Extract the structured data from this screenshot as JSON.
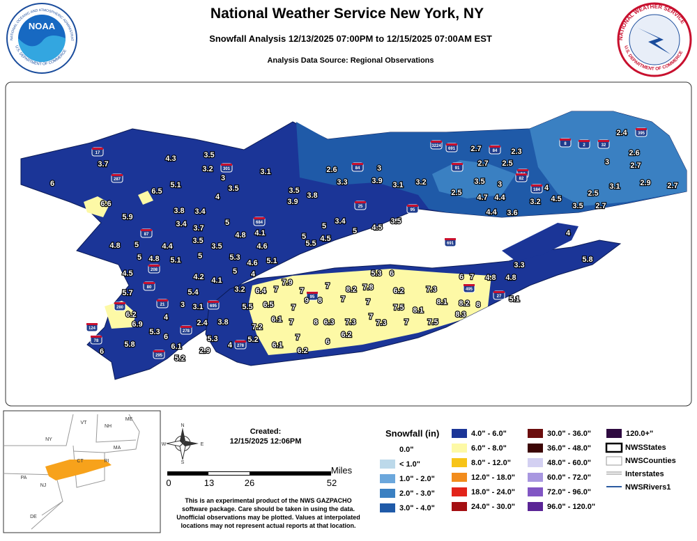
{
  "header": {
    "title": "National Weather Service New York, NY",
    "subtitle": "Snowfall Analysis 12/13/2025 07:00PM to 12/15/2025 07:00AM EST",
    "source": "Analysis Data Source: Regional Observations"
  },
  "logos": {
    "noaa": {
      "name": "NOAA",
      "ring_top": "NATIONAL OCEANIC AND ATMOSPHERIC ADMINISTRATION",
      "ring_bottom": "U.S. DEPARTMENT OF COMMERCE"
    },
    "nws": {
      "ring_top": "NATIONAL WEATHER SERVICE",
      "ring_bottom": "U.S. DEPARTMENT OF COMMERCE"
    }
  },
  "map": {
    "observations": [
      3.7,
      6,
      4.3,
      3.5,
      3.2,
      3,
      3.1,
      6.5,
      5.1,
      6.6,
      5.9,
      3.8,
      3.4,
      4,
      3.5,
      3.4,
      3.7,
      5,
      4.1,
      3.5,
      3.8,
      3.9,
      2.6,
      3,
      3.3,
      3.9,
      3.1,
      3.2,
      2.7,
      2.3,
      2.7,
      2.5,
      3.5,
      3,
      4,
      2.5,
      4.7,
      4.4,
      3.2,
      4.5,
      4.4,
      3.6,
      3.5,
      2.7,
      2.5,
      3.1,
      2.9,
      2.7,
      3,
      2.6,
      2.7,
      2.4,
      4.8,
      5,
      4.4,
      3.5,
      3.5,
      4.8,
      4.6,
      5,
      3.4,
      5,
      5.5,
      4.5,
      4.5,
      3.5,
      5,
      4,
      3.3,
      5.8,
      4.5,
      5,
      4.8,
      5.1,
      5,
      5.3,
      4.6,
      5.1,
      5,
      4,
      4.2,
      4.1,
      5.7,
      5.4,
      3.2,
      6.4,
      7,
      7.9,
      7,
      7,
      8.2,
      7.8,
      5.3,
      6,
      6.2,
      7.3,
      6,
      7,
      4.8,
      4.8,
      5.1,
      3,
      3.1,
      5.5,
      6.5,
      7,
      9,
      8,
      7,
      7,
      7.5,
      8.1,
      8.1,
      8.2,
      8,
      6.2,
      6.9,
      4,
      2.4,
      3.8,
      6.1,
      7,
      8,
      6.3,
      7.3,
      7,
      7.3,
      7,
      7.5,
      8.3,
      7.2,
      7,
      6.2,
      6,
      5.3,
      6,
      5.8,
      5.3,
      5.2,
      6.1,
      6.1,
      6,
      2.9,
      6.2,
      5.2,
      4
    ],
    "shields": [
      "17",
      "287",
      "87",
      "301",
      "84",
      "3224",
      "691",
      "91",
      "84",
      "25",
      "95",
      "691",
      "8",
      "84",
      "82",
      "184",
      "2",
      "32",
      "395",
      "684",
      "95",
      "280",
      "80",
      "208",
      "21",
      "695",
      "495",
      "27",
      "78",
      "278",
      "278",
      "124",
      "295"
    ]
  },
  "inset": {
    "labels": [
      "VT",
      "NH",
      "ME",
      "NY",
      "MA",
      "CT",
      "RI",
      "PA",
      "NJ",
      "DE"
    ]
  },
  "compass": {
    "labels": [
      "N",
      "E",
      "S",
      "W"
    ]
  },
  "scale": {
    "unit": "Miles",
    "ticks": [
      "0",
      "13",
      "26",
      "52"
    ]
  },
  "created": {
    "label": "Created:",
    "date": "12/15/2025 12:06PM"
  },
  "disclaimer": [
    "This is an experimental product of the NWS GAZPACHO",
    "software package. Care should be taken in using the data.",
    "Unofficial observations may be plotted. Values at interpolated",
    "locations may not represent actual reports at that location."
  ],
  "legend": {
    "title": "Snowfall (in)",
    "ranges": [
      {
        "label": "0.0\"",
        "color": "#ffffff"
      },
      {
        "label": "< 1.0\"",
        "color": "#bcd9ea"
      },
      {
        "label": "1.0\" - 2.0\"",
        "color": "#6ba7dc"
      },
      {
        "label": "2.0\" - 3.0\"",
        "color": "#3a80c2"
      },
      {
        "label": "3.0\" - 4.0\"",
        "color": "#1f5aa8"
      },
      {
        "label": "4.0\" - 6.0\"",
        "color": "#1b3597"
      },
      {
        "label": "6.0\" - 8.0\"",
        "color": "#fdf9a6"
      },
      {
        "label": "8.0\" - 12.0\"",
        "color": "#f7c418"
      },
      {
        "label": "12.0\" - 18.0\"",
        "color": "#f28c1c"
      },
      {
        "label": "18.0\" - 24.0\"",
        "color": "#e2231a"
      },
      {
        "label": "24.0\" - 30.0\"",
        "color": "#a40f12"
      },
      {
        "label": "30.0\" - 36.0\"",
        "color": "#6b0d0d"
      },
      {
        "label": "36.0\" - 48.0\"",
        "color": "#3c0606"
      },
      {
        "label": "48.0\" - 60.0\"",
        "color": "#d3d0f2"
      },
      {
        "label": "60.0\" - 72.0\"",
        "color": "#a897e0"
      },
      {
        "label": "72.0\" - 96.0\"",
        "color": "#8156c4"
      },
      {
        "label": "96.0\" - 120.0\"",
        "color": "#5a2596"
      },
      {
        "label": "120.0+\"",
        "color": "#2e0a40"
      }
    ],
    "layers": [
      "NWSStates",
      "NWSCounties",
      "Interstates",
      "NWSRivers1"
    ]
  }
}
